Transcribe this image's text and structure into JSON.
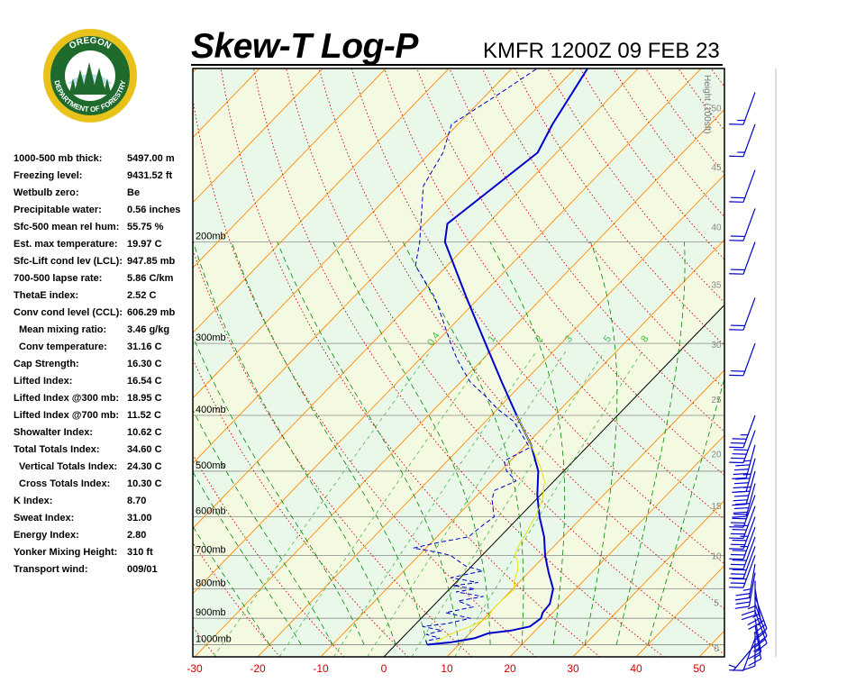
{
  "header": {
    "title": "Skew-T Log-P",
    "station_time": "KMFR 1200Z 09 FEB 23"
  },
  "logo": {
    "top_text": "OREGON",
    "bottom_text": "DEPARTMENT OF FORESTRY",
    "ring_color": "#e8c21a",
    "field_color": "#1f6b2e"
  },
  "indices": [
    {
      "label": "1000-500 mb thick:",
      "value": "5497.00 m",
      "indent": false
    },
    {
      "label": "Freezing level:",
      "value": "9431.52 ft",
      "indent": false
    },
    {
      "label": "Wetbulb zero:",
      "value": "Be",
      "indent": false
    },
    {
      "label": "Precipitable water:",
      "value": "0.56 inches",
      "indent": false
    },
    {
      "label": "Sfc-500 mean rel hum:",
      "value": "55.75 %",
      "indent": false
    },
    {
      "label": "Est. max temperature:",
      "value": "19.97 C",
      "indent": false
    },
    {
      "label": "Sfc-Lift cond lev (LCL):",
      "value": "947.85 mb",
      "indent": false
    },
    {
      "label": "700-500 lapse rate:",
      "value": "5.86 C/km",
      "indent": false
    },
    {
      "label": "ThetaE index:",
      "value": "2.52 C",
      "indent": false
    },
    {
      "label": "Conv cond level (CCL):",
      "value": "606.29 mb",
      "indent": false
    },
    {
      "label": "Mean mixing ratio:",
      "value": "3.46 g/kg",
      "indent": true
    },
    {
      "label": "Conv temperature:",
      "value": "31.16 C",
      "indent": true
    },
    {
      "label": "Cap Strength:",
      "value": "16.30 C",
      "indent": false
    },
    {
      "label": "Lifted Index:",
      "value": "16.54 C",
      "indent": false
    },
    {
      "label": "Lifted Index @300 mb:",
      "value": "18.95 C",
      "indent": false
    },
    {
      "label": "Lifted Index @700 mb:",
      "value": "11.52 C",
      "indent": false
    },
    {
      "label": "Showalter Index:",
      "value": "10.62 C",
      "indent": false
    },
    {
      "label": "Total Totals Index:",
      "value": "34.60 C",
      "indent": false
    },
    {
      "label": "Vertical Totals Index:",
      "value": "24.30 C",
      "indent": true
    },
    {
      "label": "Cross Totals Index:",
      "value": "10.30 C",
      "indent": true
    },
    {
      "label": "K Index:",
      "value": "8.70",
      "indent": false
    },
    {
      "label": "Sweat Index:",
      "value": "31.00",
      "indent": false
    },
    {
      "label": "Energy Index:",
      "value": "2.80",
      "indent": false
    },
    {
      "label": "Yonker Mixing Height:",
      "value": "310 ft",
      "indent": false
    },
    {
      "label": "Transport wind:",
      "value": "009/01",
      "indent": false
    }
  ],
  "chart_data": {
    "type": "line",
    "subtype": "skew-t log-p",
    "title": "Skew-T Log-P",
    "x_axis": {
      "ticks": [
        -30,
        -20,
        -10,
        0,
        10,
        20,
        30,
        40,
        50
      ],
      "range": [
        -30,
        50
      ],
      "units": "C",
      "tick_color": "#cc0000"
    },
    "y_axis": {
      "scale": "log",
      "range_mb": [
        1050,
        100
      ],
      "pressure_labels": [
        {
          "p": 1000,
          "label": "1000mb"
        },
        {
          "p": 900,
          "label": "900mb"
        },
        {
          "p": 800,
          "label": "800mb"
        },
        {
          "p": 700,
          "label": "700mb"
        },
        {
          "p": 600,
          "label": "600mb"
        },
        {
          "p": 500,
          "label": "500mb"
        },
        {
          "p": 400,
          "label": "400mb"
        },
        {
          "p": 300,
          "label": "300mb"
        },
        {
          "p": 200,
          "label": "200mb"
        }
      ]
    },
    "height_axis": {
      "title": "Height (100sft)",
      "ticks": [
        {
          "label": "0",
          "p": 1012
        },
        {
          "label": "5",
          "p": 845
        },
        {
          "label": "10",
          "p": 700
        },
        {
          "label": "15",
          "p": 573
        },
        {
          "label": "20",
          "p": 466
        },
        {
          "label": "25",
          "p": 375
        },
        {
          "label": "30",
          "p": 301
        },
        {
          "label": "35",
          "p": 237
        },
        {
          "label": "40",
          "p": 188
        },
        {
          "label": "45",
          "p": 148
        },
        {
          "label": "50",
          "p": 117
        }
      ]
    },
    "mixing_ratio_labels": [
      "0.4",
      "1",
      "2",
      "3",
      "5",
      "8"
    ],
    "colors": {
      "temperature": "#0000cc",
      "dewpoint": "#0000cc",
      "parcel": "#e6e600",
      "isotherm": "#ff8c00",
      "dry_adiabat": "#cc0000",
      "moist_adiabat": "#008800",
      "mixing_ratio": "#44bb44",
      "barb": "#0000cc",
      "band_green": "#eaf8ea",
      "band_yellow": "#f4f9e2"
    },
    "series": [
      {
        "name": "",
        "kind": "temperature",
        "style": "solid",
        "points": [
          [
            1000,
            5.0
          ],
          [
            990,
            8.5
          ],
          [
            975,
            11.5
          ],
          [
            955,
            13.0
          ],
          [
            945,
            16.2
          ],
          [
            930,
            18.5
          ],
          [
            900,
            19.0
          ],
          [
            880,
            18.4
          ],
          [
            850,
            18.2
          ],
          [
            800,
            16.4
          ],
          [
            750,
            13.2
          ],
          [
            700,
            10.0
          ],
          [
            650,
            7.0
          ],
          [
            600,
            3.2
          ],
          [
            550,
            -0.5
          ],
          [
            500,
            -4.0
          ],
          [
            450,
            -9.2
          ],
          [
            400,
            -16.0
          ],
          [
            350,
            -23.5
          ],
          [
            300,
            -32.0
          ],
          [
            250,
            -42.0
          ],
          [
            200,
            -54.0
          ],
          [
            186,
            -56.4
          ],
          [
            140,
            -53.0
          ],
          [
            125,
            -55.0
          ],
          [
            100,
            -58.0
          ]
        ]
      },
      {
        "name": "",
        "kind": "dewpoint",
        "style": "dashed",
        "points": [
          [
            1000,
            5.0
          ],
          [
            985,
            4.2
          ],
          [
            975,
            6.0
          ],
          [
            960,
            3.3
          ],
          [
            945,
            5.2
          ],
          [
            930,
            1.5
          ],
          [
            920,
            4.8
          ],
          [
            900,
            7.8
          ],
          [
            880,
            3.0
          ],
          [
            860,
            6.5
          ],
          [
            840,
            3.2
          ],
          [
            825,
            6.5
          ],
          [
            810,
            1.5
          ],
          [
            800,
            4.0
          ],
          [
            790,
            0.0
          ],
          [
            780,
            3.5
          ],
          [
            765,
            -1.5
          ],
          [
            745,
            2.5
          ],
          [
            730,
            -1.0
          ],
          [
            715,
            -3.0
          ],
          [
            700,
            -5.0
          ],
          [
            690,
            -8.0
          ],
          [
            680,
            -12.0
          ],
          [
            665,
            -9.0
          ],
          [
            650,
            -5.0
          ],
          [
            620,
            -4.5
          ],
          [
            600,
            -4.0
          ],
          [
            560,
            -7.0
          ],
          [
            540,
            -8.0
          ],
          [
            520,
            -6.0
          ],
          [
            500,
            -9.0
          ],
          [
            480,
            -11.0
          ],
          [
            455,
            -9.0
          ],
          [
            430,
            -12.5
          ],
          [
            410,
            -15.5
          ],
          [
            390,
            -20.0
          ],
          [
            370,
            -24.0
          ],
          [
            350,
            -28.5
          ],
          [
            320,
            -34.0
          ],
          [
            300,
            -37.5
          ],
          [
            250,
            -47.0
          ],
          [
            220,
            -55.0
          ],
          [
            200,
            -58.0
          ],
          [
            160,
            -66.0
          ],
          [
            140,
            -68.0
          ],
          [
            125,
            -71.0
          ],
          [
            110,
            -68.0
          ],
          [
            100,
            -66.0
          ]
        ]
      },
      {
        "name": "",
        "kind": "parcel",
        "style": "solid",
        "points": [
          [
            990,
            6.0
          ],
          [
            960,
            7.0
          ],
          [
            930,
            9.0
          ],
          [
            900,
            10.5
          ],
          [
            870,
            10.0
          ],
          [
            840,
            10.0
          ],
          [
            800,
            10.3
          ],
          [
            780,
            9.2
          ],
          [
            760,
            8.5
          ],
          [
            740,
            7.8
          ],
          [
            720,
            6.8
          ],
          [
            700,
            5.2
          ],
          [
            680,
            4.5
          ],
          [
            660,
            4.0
          ],
          [
            640,
            3.6
          ],
          [
            620,
            3.0
          ],
          [
            600,
            2.5
          ],
          [
            580,
            1.8
          ],
          [
            560,
            1.0
          ],
          [
            520,
            -1.5
          ],
          [
            490,
            -4.5
          ],
          [
            460,
            -8.0
          ],
          [
            430,
            -11.8
          ],
          [
            400,
            -16.0
          ]
        ]
      }
    ],
    "wind_barbs": [
      {
        "p": 1000,
        "dir": 220,
        "speed": 5
      },
      {
        "p": 975,
        "dir": 200,
        "speed": 10
      },
      {
        "p": 950,
        "dir": 180,
        "speed": 10
      },
      {
        "p": 925,
        "dir": 170,
        "speed": 15
      },
      {
        "p": 900,
        "dir": 170,
        "speed": 15
      },
      {
        "p": 875,
        "dir": 160,
        "speed": 20
      },
      {
        "p": 850,
        "dir": 160,
        "speed": 20
      },
      {
        "p": 825,
        "dir": 160,
        "speed": 25
      },
      {
        "p": 800,
        "dir": 170,
        "speed": 25
      },
      {
        "p": 775,
        "dir": 180,
        "speed": 25
      },
      {
        "p": 750,
        "dir": 190,
        "speed": 25
      },
      {
        "p": 725,
        "dir": 190,
        "speed": 25
      },
      {
        "p": 700,
        "dir": 200,
        "speed": 30
      },
      {
        "p": 675,
        "dir": 200,
        "speed": 30
      },
      {
        "p": 650,
        "dir": 200,
        "speed": 30
      },
      {
        "p": 625,
        "dir": 200,
        "speed": 35
      },
      {
        "p": 600,
        "dir": 200,
        "speed": 35
      },
      {
        "p": 575,
        "dir": 200,
        "speed": 40
      },
      {
        "p": 550,
        "dir": 200,
        "speed": 40
      },
      {
        "p": 525,
        "dir": 195,
        "speed": 40
      },
      {
        "p": 500,
        "dir": 195,
        "speed": 45
      },
      {
        "p": 475,
        "dir": 195,
        "speed": 45
      },
      {
        "p": 450,
        "dir": 195,
        "speed": 45
      },
      {
        "p": 425,
        "dir": 200,
        "speed": 40
      },
      {
        "p": 400,
        "dir": 200,
        "speed": 35
      },
      {
        "p": 300,
        "dir": 200,
        "speed": 20
      },
      {
        "p": 250,
        "dir": 200,
        "speed": 20
      },
      {
        "p": 200,
        "dir": 200,
        "speed": 20
      },
      {
        "p": 175,
        "dir": 200,
        "speed": 20
      },
      {
        "p": 150,
        "dir": 200,
        "speed": 20
      },
      {
        "p": 125,
        "dir": 200,
        "speed": 15
      },
      {
        "p": 110,
        "dir": 200,
        "speed": 15
      }
    ]
  }
}
